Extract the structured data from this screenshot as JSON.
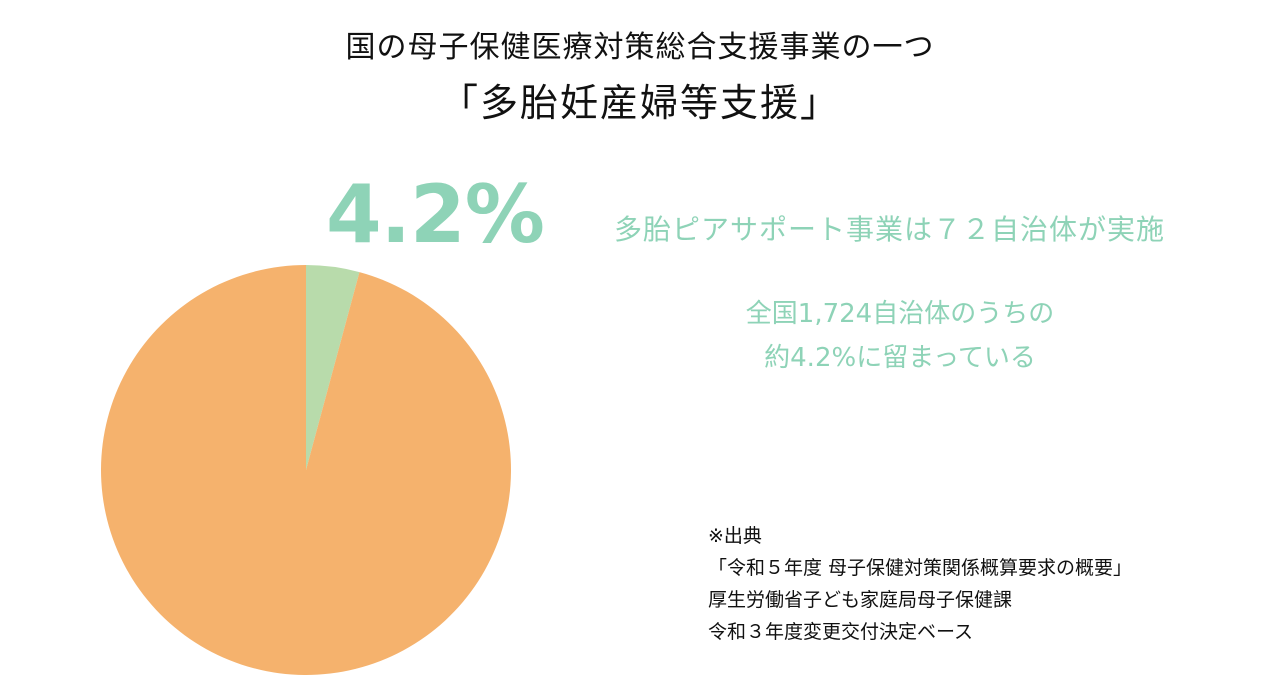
{
  "title": {
    "line1": "国の母子保健医療対策総合支援事業の一つ",
    "line2": "「多胎妊産婦等支援」"
  },
  "highlight": {
    "percent_text": "4.2%"
  },
  "notes": {
    "line1": "多胎ピアサポート事業は７２自治体が実施",
    "line2": "全国1,724自治体のうちの",
    "line3": "約4.2%に留まっている"
  },
  "source": {
    "line1": "※出典",
    "line2": "「令和５年度  母子保健対策関係概算要求の概要」",
    "line3": "厚生労働省子ども家庭局母子保健課",
    "line4": "令和３年度変更交付決定ベース"
  },
  "colors": {
    "accent_text": "#8ed3b7",
    "slice_small": "#b8dbab",
    "slice_large": "#f5b26d"
  },
  "chart_data": {
    "type": "pie",
    "title": "",
    "slices": [
      {
        "value": 4.2,
        "color": "#b8dbab"
      },
      {
        "value": 95.8,
        "color": "#f5b26d"
      }
    ],
    "start_angle": "12 o'clock",
    "direction": "clockwise",
    "legend": "none"
  }
}
